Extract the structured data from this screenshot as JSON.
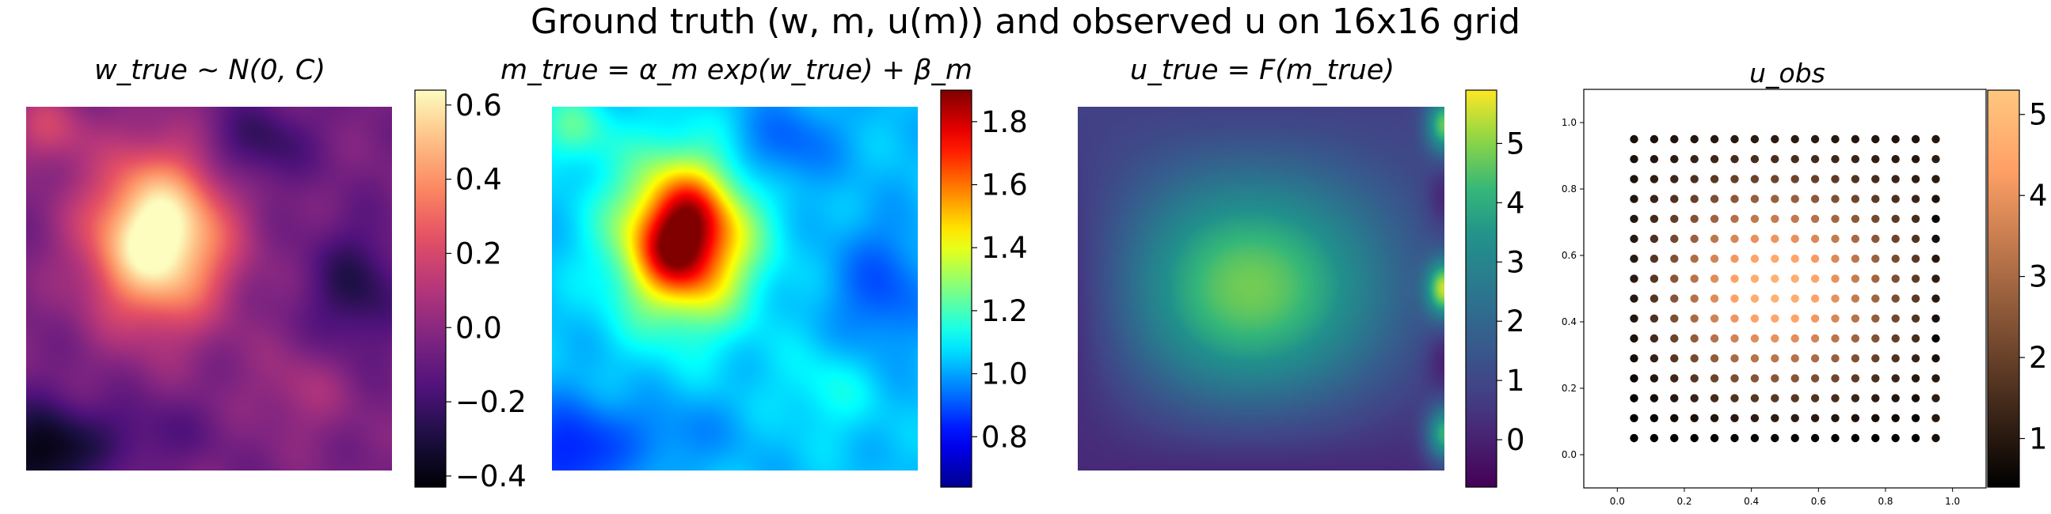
{
  "figure": {
    "title": "Ground truth (w, m, u(m)) and observed u on 16x16 grid"
  },
  "chart_data": [
    {
      "type": "heatmap",
      "title": "w_true ~ N(0, C)",
      "colormap": "magma",
      "colorbar": {
        "range": [
          -0.43,
          0.64
        ],
        "ticks": [
          "−0.4",
          "−0.2",
          "0.0",
          "0.2",
          "0.4",
          "0.6"
        ]
      },
      "blobs": [
        {
          "x": 0.36,
          "y": 0.64,
          "sx": 0.13,
          "sy": 0.16,
          "amp": 0.8
        },
        {
          "x": 0.63,
          "y": 0.9,
          "sx": 0.1,
          "sy": 0.08,
          "amp": -0.2
        },
        {
          "x": 0.9,
          "y": 0.5,
          "sx": 0.09,
          "sy": 0.12,
          "amp": -0.22
        },
        {
          "x": 0.04,
          "y": 0.04,
          "sx": 0.1,
          "sy": 0.1,
          "amp": -0.35
        },
        {
          "x": 0.75,
          "y": 0.22,
          "sx": 0.1,
          "sy": 0.09,
          "amp": 0.12
        },
        {
          "x": 0.06,
          "y": 0.94,
          "sx": 0.07,
          "sy": 0.07,
          "amp": 0.22
        },
        {
          "x": 0.3,
          "y": 0.1,
          "sx": 0.14,
          "sy": 0.07,
          "amp": -0.12
        }
      ],
      "base": -0.05
    },
    {
      "type": "heatmap",
      "title": "m_true = α_m exp(w_true) + β_m",
      "colormap": "jet",
      "colorbar": {
        "range": [
          0.64,
          1.9
        ],
        "ticks": [
          "0.8",
          "1.0",
          "1.2",
          "1.4",
          "1.6",
          "1.8"
        ]
      }
    },
    {
      "type": "heatmap",
      "title": "u_true = F(m_true)",
      "colormap": "viridis",
      "colorbar": {
        "range": [
          -0.8,
          5.9
        ],
        "ticks": [
          "0",
          "1",
          "2",
          "3",
          "4",
          "5"
        ]
      },
      "peak": {
        "x": 0.32,
        "y": 0.49,
        "value": 5.1
      },
      "boundary": {
        "bottom": 0.2,
        "left": 0.4,
        "top": 0.8
      },
      "right_edge_bumps": [
        {
          "y": 0.95,
          "value": 4.6
        },
        {
          "y": 0.75,
          "value": -0.6
        },
        {
          "y": 0.5,
          "value": 5.3
        },
        {
          "y": 0.3,
          "value": -0.6
        },
        {
          "y": 0.1,
          "value": 4.3
        }
      ]
    },
    {
      "type": "scatter",
      "title": "u_obs",
      "colormap": "copper",
      "grid_n": 16,
      "grid_from": 0.05,
      "grid_to": 0.95,
      "xlim": [
        -0.1,
        1.1
      ],
      "ylim": [
        -0.1,
        1.1
      ],
      "xticks": [
        "0.0",
        "0.2",
        "0.4",
        "0.6",
        "0.8",
        "1.0"
      ],
      "yticks": [
        "0.0",
        "0.2",
        "0.4",
        "0.6",
        "0.8",
        "1.0"
      ],
      "colorbar": {
        "range": [
          0.4,
          5.3
        ],
        "ticks": [
          "1",
          "2",
          "3",
          "4",
          "5"
        ]
      }
    }
  ]
}
